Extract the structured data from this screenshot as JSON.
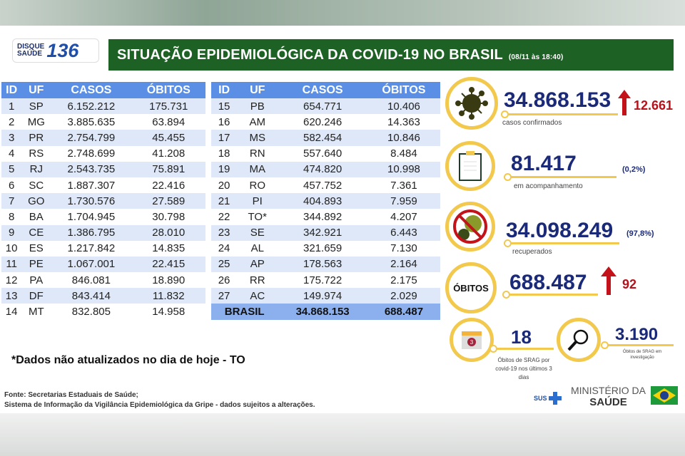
{
  "header": {
    "logo_top": "DISQUE",
    "logo_bottom": "SAÚDE",
    "logo_number": "136",
    "title": "SITUAÇÃO EPIDEMIOLÓGICA DA COVID-19 NO BRASIL",
    "date": "(08/11 às 18:40)"
  },
  "table": {
    "columns": [
      "ID",
      "UF",
      "CASOS",
      "ÓBITOS"
    ],
    "rows_left": [
      [
        "1",
        "SP",
        "6.152.212",
        "175.731"
      ],
      [
        "2",
        "MG",
        "3.885.635",
        "63.894"
      ],
      [
        "3",
        "PR",
        "2.754.799",
        "45.455"
      ],
      [
        "4",
        "RS",
        "2.748.699",
        "41.208"
      ],
      [
        "5",
        "RJ",
        "2.543.735",
        "75.891"
      ],
      [
        "6",
        "SC",
        "1.887.307",
        "22.416"
      ],
      [
        "7",
        "GO",
        "1.730.576",
        "27.589"
      ],
      [
        "8",
        "BA",
        "1.704.945",
        "30.798"
      ],
      [
        "9",
        "CE",
        "1.386.795",
        "28.010"
      ],
      [
        "10",
        "ES",
        "1.217.842",
        "14.835"
      ],
      [
        "11",
        "PE",
        "1.067.001",
        "22.415"
      ],
      [
        "12",
        "PA",
        "846.081",
        "18.890"
      ],
      [
        "13",
        "DF",
        "843.414",
        "11.832"
      ],
      [
        "14",
        "MT",
        "832.805",
        "14.958"
      ]
    ],
    "rows_right": [
      [
        "15",
        "PB",
        "654.771",
        "10.406"
      ],
      [
        "16",
        "AM",
        "620.246",
        "14.363"
      ],
      [
        "17",
        "MS",
        "582.454",
        "10.846"
      ],
      [
        "18",
        "RN",
        "557.640",
        "8.484"
      ],
      [
        "19",
        "MA",
        "474.820",
        "10.998"
      ],
      [
        "20",
        "RO",
        "457.752",
        "7.361"
      ],
      [
        "21",
        "PI",
        "404.893",
        "7.959"
      ],
      [
        "22",
        "TO*",
        "344.892",
        "4.207"
      ],
      [
        "23",
        "SE",
        "342.921",
        "6.443"
      ],
      [
        "24",
        "AL",
        "321.659",
        "7.130"
      ],
      [
        "25",
        "AP",
        "178.563",
        "2.164"
      ],
      [
        "26",
        "RR",
        "175.722",
        "2.175"
      ],
      [
        "27",
        "AC",
        "149.974",
        "2.029"
      ]
    ],
    "total": {
      "label": "BRASIL",
      "casos": "34.868.153",
      "obitos": "688.487"
    }
  },
  "note": "*Dados não atualizados no dia de hoje - TO",
  "source": [
    "Fonte: Secretarias Estaduais de Saúde;",
    "Sistema de Informação da Vigilância Epidemiológica da Gripe - dados sujeitos a alterações."
  ],
  "stats": {
    "confirmed": {
      "value": "34.868.153",
      "increase": "12.661",
      "label": "casos confirmados",
      "icon": "virus-icon"
    },
    "monitoring": {
      "value": "81.417",
      "pct": "(0,2%)",
      "label": "em acompanhamento",
      "icon": "clipboard-icon"
    },
    "recovered": {
      "value": "34.098.249",
      "pct": "(97,8%)",
      "label": "recuperados",
      "icon": "no-virus-icon"
    },
    "deaths": {
      "badge": "ÓBITOS",
      "value": "688.487",
      "increase": "92"
    },
    "srag": {
      "value": "18",
      "label": "Óbitos de SRAG por covid-19 nos últimos 3 dias",
      "calendar": "3",
      "icon": "calendar-icon"
    },
    "investigation": {
      "value": "3.190",
      "label": "Óbitos de SRAG em investigação",
      "icon": "magnifier-icon"
    }
  },
  "footer": {
    "sus": "SUS",
    "ministry_top": "MINISTÉRIO DA",
    "ministry_bottom": "SAÚDE"
  },
  "colors": {
    "title_bg": "#1d6125",
    "table_header": "#5b8fe6",
    "accent_yellow": "#f2c94c",
    "number_blue": "#1a2a78",
    "increase_red": "#b5121b"
  }
}
